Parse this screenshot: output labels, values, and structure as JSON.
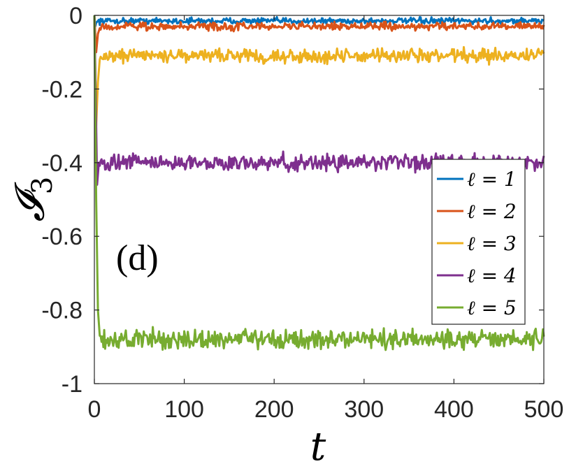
{
  "chart_data": {
    "type": "line",
    "title": "",
    "panel_label": "(d)",
    "xlabel": "t",
    "ylabel": "𝓘",
    "ylabel_subscript": "3",
    "xlim": [
      0,
      500
    ],
    "ylim": [
      -1,
      0
    ],
    "xticks": [
      0,
      100,
      200,
      300,
      400,
      500
    ],
    "xtick_labels": [
      "0",
      "100",
      "200",
      "300",
      "400",
      "500"
    ],
    "yticks": [
      0,
      -0.2,
      -0.4,
      -0.6,
      -0.8,
      -1
    ],
    "ytick_labels": [
      "0",
      "-0.2",
      "-0.4",
      "-0.6",
      "-0.8",
      "-1"
    ],
    "grid": false,
    "legend_position": "right",
    "series": [
      {
        "name": "ℓ = 1",
        "color": "#0072BD",
        "plateau": -0.015,
        "noise": 0.004,
        "transient": [
          [
            0,
            0
          ],
          [
            1,
            -0.03
          ],
          [
            2,
            -0.02
          ],
          [
            4,
            -0.015
          ]
        ]
      },
      {
        "name": "ℓ = 2",
        "color": "#D95319",
        "plateau": -0.03,
        "noise": 0.005,
        "transient": [
          [
            0,
            0
          ],
          [
            2,
            -0.1
          ],
          [
            4,
            -0.05
          ],
          [
            6,
            -0.035
          ]
        ]
      },
      {
        "name": "ℓ = 3",
        "color": "#EDB120",
        "plateau": -0.11,
        "noise": 0.009,
        "transient": [
          [
            0,
            0
          ],
          [
            2,
            -0.3
          ],
          [
            4,
            -0.18
          ],
          [
            6,
            -0.12
          ]
        ]
      },
      {
        "name": "ℓ = 4",
        "color": "#7E2F8E",
        "plateau": -0.4,
        "noise": 0.011,
        "transient": [
          [
            0,
            0
          ],
          [
            2,
            -0.3
          ],
          [
            3,
            -0.46
          ],
          [
            5,
            -0.4
          ]
        ]
      },
      {
        "name": "ℓ = 5",
        "color": "#77AC30",
        "plateau": -0.88,
        "noise": 0.013,
        "transient": [
          [
            0,
            0
          ],
          [
            2,
            -0.5
          ],
          [
            4,
            -0.8
          ],
          [
            6,
            -0.87
          ]
        ]
      }
    ]
  }
}
